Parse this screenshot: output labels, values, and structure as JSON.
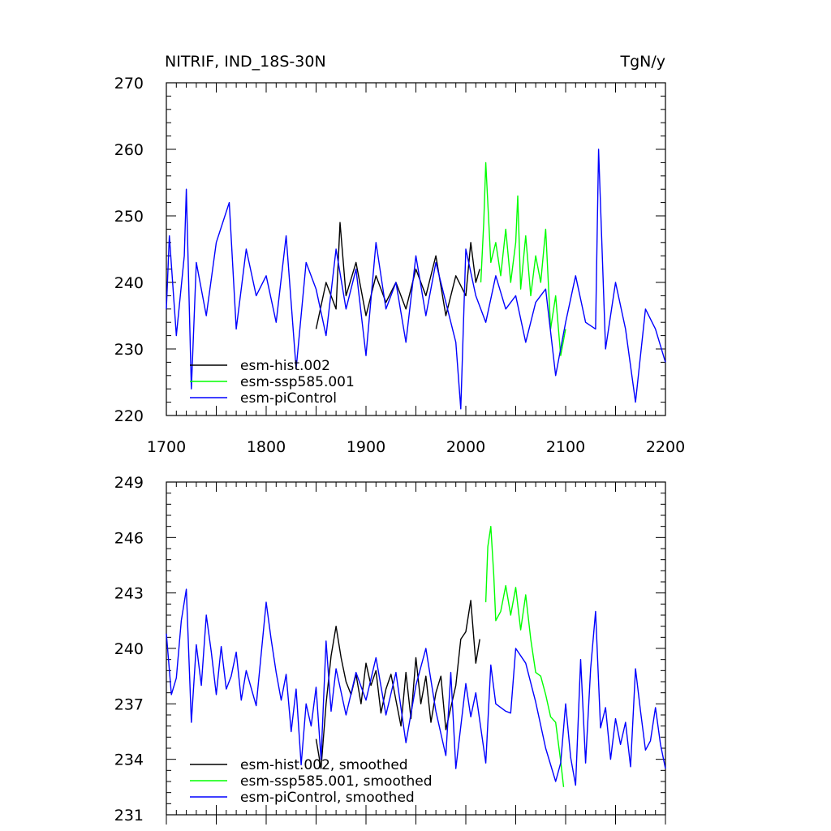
{
  "header": {
    "variable_region": "NITRIF, IND_18S-30N",
    "units": "TgN/y"
  },
  "colors": {
    "esm-hist.002": "#000000",
    "esm-ssp585.001": "#00ff00",
    "esm-piControl": "#0000ff"
  },
  "chart_data": [
    {
      "type": "line",
      "title": "",
      "xlabel": "",
      "ylabel": "",
      "xlim": [
        1700,
        2200
      ],
      "ylim": [
        220,
        270
      ],
      "x_ticks": [
        1700,
        1800,
        1900,
        2000,
        2100,
        2200
      ],
      "y_ticks": [
        220,
        230,
        240,
        250,
        260,
        270
      ],
      "x_tick_labels": [
        "1700",
        "1800",
        "1900",
        "2000",
        "2100",
        "2200"
      ],
      "y_tick_labels": [
        "220",
        "230",
        "240",
        "250",
        "260",
        "270"
      ],
      "legend_position": "bottom-left",
      "series": [
        {
          "name": "esm-hist.002",
          "color": "#000000",
          "x": [
            1850,
            1860,
            1870,
            1874,
            1880,
            1890,
            1900,
            1910,
            1920,
            1930,
            1940,
            1950,
            1960,
            1970,
            1980,
            1990,
            2000,
            2005,
            2010,
            2014
          ],
          "y": [
            233,
            240,
            236,
            249,
            238,
            243,
            235,
            241,
            237,
            240,
            236,
            242,
            238,
            244,
            235,
            241,
            238,
            246,
            240,
            242
          ]
        },
        {
          "name": "esm-ssp585.001",
          "color": "#00ff00",
          "x": [
            2015,
            2018,
            2020,
            2025,
            2030,
            2035,
            2040,
            2045,
            2050,
            2052,
            2055,
            2060,
            2065,
            2070,
            2075,
            2080,
            2085,
            2090,
            2095,
            2100
          ],
          "y": [
            240,
            249,
            258,
            243,
            246,
            241,
            248,
            240,
            246,
            253,
            239,
            247,
            238,
            244,
            240,
            248,
            233,
            238,
            229,
            233
          ]
        },
        {
          "name": "esm-piControl",
          "color": "#0000ff",
          "x": [
            1700,
            1703,
            1710,
            1718,
            1720,
            1725,
            1730,
            1740,
            1750,
            1763,
            1770,
            1780,
            1790,
            1800,
            1810,
            1820,
            1830,
            1840,
            1850,
            1860,
            1870,
            1880,
            1890,
            1900,
            1910,
            1920,
            1930,
            1940,
            1950,
            1960,
            1970,
            1980,
            1990,
            1995,
            2000,
            2010,
            2020,
            2030,
            2040,
            2050,
            2060,
            2070,
            2080,
            2090,
            2100,
            2110,
            2120,
            2130,
            2133,
            2140,
            2150,
            2160,
            2170,
            2180,
            2190,
            2200
          ],
          "y": [
            236,
            247,
            232,
            244,
            254,
            224,
            243,
            235,
            246,
            252,
            233,
            245,
            238,
            241,
            234,
            247,
            227,
            243,
            239,
            232,
            245,
            236,
            242,
            229,
            246,
            236,
            240,
            231,
            244,
            235,
            243,
            237,
            231,
            221,
            245,
            238,
            234,
            241,
            236,
            238,
            231,
            237,
            239,
            226,
            234,
            241,
            234,
            233,
            260,
            230,
            240,
            233,
            222,
            236,
            233,
            228
          ]
        }
      ]
    },
    {
      "type": "line",
      "title": "",
      "xlabel": "",
      "ylabel": "",
      "xlim": [
        1700,
        2200
      ],
      "ylim": [
        231,
        249
      ],
      "y_ticks": [
        231,
        234,
        237,
        240,
        243,
        246,
        249
      ],
      "y_tick_labels": [
        "231",
        "234",
        "237",
        "240",
        "243",
        "246",
        "249"
      ],
      "legend_position": "bottom-left",
      "series": [
        {
          "name": "esm-hist.002, smoothed",
          "color": "#000000",
          "x": [
            1850,
            1855,
            1860,
            1865,
            1870,
            1875,
            1880,
            1885,
            1890,
            1895,
            1900,
            1905,
            1910,
            1915,
            1920,
            1925,
            1930,
            1935,
            1940,
            1945,
            1950,
            1955,
            1960,
            1965,
            1970,
            1975,
            1980,
            1985,
            1990,
            1995,
            2000,
            2005,
            2010,
            2014
          ],
          "y": [
            235.1,
            233.5,
            237.0,
            239.6,
            241.2,
            239.5,
            238.2,
            237.5,
            238.6,
            237.0,
            239.2,
            238.0,
            238.8,
            236.5,
            237.8,
            238.6,
            237.2,
            235.8,
            238.7,
            236.2,
            239.5,
            237.0,
            238.5,
            236.0,
            237.6,
            238.5,
            235.6,
            236.8,
            238.0,
            240.5,
            240.9,
            242.6,
            239.2,
            240.5
          ]
        },
        {
          "name": "esm-ssp585.001, smoothed",
          "color": "#00ff00",
          "x": [
            2020,
            2022,
            2025,
            2028,
            2030,
            2035,
            2040,
            2045,
            2050,
            2055,
            2060,
            2065,
            2070,
            2075,
            2080,
            2085,
            2090,
            2095,
            2098
          ],
          "y": [
            242.5,
            245.5,
            246.6,
            244.0,
            241.5,
            242.0,
            243.4,
            241.8,
            243.3,
            241.0,
            242.9,
            240.5,
            238.7,
            238.5,
            237.5,
            236.3,
            236.0,
            233.9,
            232.5
          ]
        },
        {
          "name": "esm-piControl, smoothed",
          "color": "#0000ff",
          "x": [
            1700,
            1705,
            1710,
            1715,
            1720,
            1725,
            1730,
            1735,
            1740,
            1745,
            1750,
            1755,
            1760,
            1765,
            1770,
            1775,
            1780,
            1790,
            1800,
            1805,
            1810,
            1815,
            1820,
            1825,
            1830,
            1835,
            1840,
            1845,
            1850,
            1855,
            1860,
            1865,
            1870,
            1880,
            1890,
            1900,
            1910,
            1920,
            1930,
            1940,
            1950,
            1960,
            1970,
            1980,
            1985,
            1990,
            2000,
            2005,
            2010,
            2020,
            2025,
            2030,
            2040,
            2045,
            2050,
            2060,
            2070,
            2080,
            2090,
            2095,
            2100,
            2105,
            2110,
            2115,
            2120,
            2125,
            2130,
            2135,
            2140,
            2145,
            2150,
            2155,
            2160,
            2165,
            2170,
            2175,
            2180,
            2185,
            2190,
            2195,
            2200
          ],
          "y": [
            240.8,
            237.5,
            238.4,
            241.5,
            243.2,
            236.0,
            240.2,
            238.0,
            241.8,
            239.8,
            237.5,
            240.1,
            237.8,
            238.5,
            239.8,
            237.2,
            238.8,
            236.9,
            242.5,
            240.5,
            238.7,
            237.2,
            238.6,
            235.5,
            237.8,
            233.7,
            237.0,
            235.8,
            237.9,
            234.0,
            240.4,
            236.6,
            238.9,
            236.4,
            238.7,
            237.2,
            239.5,
            236.4,
            238.7,
            234.9,
            238.0,
            240.0,
            236.6,
            234.2,
            238.7,
            233.5,
            238.1,
            236.3,
            237.6,
            233.8,
            239.1,
            237.0,
            236.6,
            236.5,
            240.0,
            239.2,
            237.1,
            234.6,
            232.8,
            233.8,
            237.0,
            234.1,
            232.6,
            239.4,
            233.8,
            238.9,
            242.0,
            235.7,
            236.8,
            234.0,
            236.2,
            234.8,
            236.0,
            233.6,
            238.9,
            236.6,
            234.5,
            235.0,
            236.8,
            234.8,
            233.5
          ]
        }
      ]
    }
  ]
}
